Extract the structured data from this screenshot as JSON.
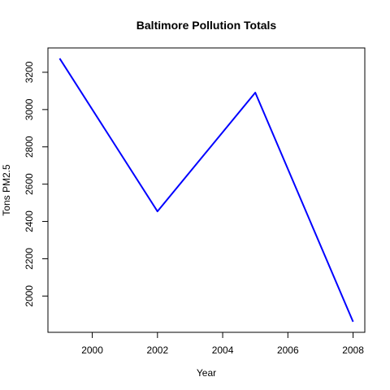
{
  "chart_data": {
    "type": "line",
    "title": "Baltimore Pollution Totals",
    "xlabel": "Year",
    "ylabel": "Tons PM2.5",
    "x": [
      1999,
      2002,
      2005,
      2008
    ],
    "series": [
      {
        "values": [
          3274,
          2454,
          3091,
          1862
        ],
        "color": "#0000ff"
      }
    ],
    "xlim": [
      1999,
      2008
    ],
    "ylim": [
      1862,
      3274
    ],
    "xticks": [
      2000,
      2002,
      2004,
      2006,
      2008
    ],
    "yticks": [
      2000,
      2200,
      2400,
      2600,
      2800,
      3000,
      3200
    ],
    "grid": false
  }
}
